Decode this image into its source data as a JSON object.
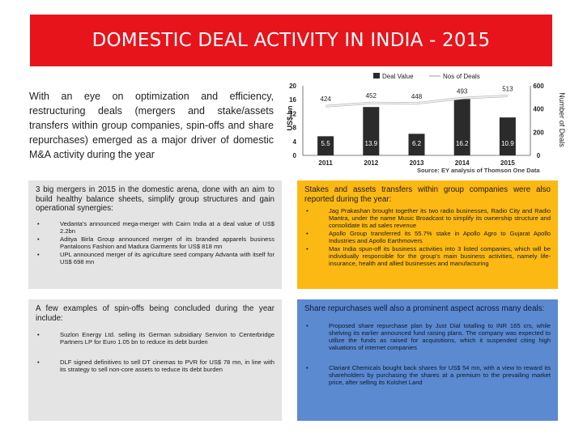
{
  "title": "DOMESTIC DEAL ACTIVITY IN INDIA - 2015",
  "intro": "With an eye on optimization and efficiency, restructuring deals (mergers and stake/assets transfers within group companies, spin-offs and share repurchases) emerged as a major driver of domestic M&A activity during the year",
  "chart_data": {
    "type": "bar",
    "categories": [
      "2011",
      "2012",
      "2013",
      "2014",
      "2015"
    ],
    "series": [
      {
        "name": "Deal Value",
        "kind": "bar",
        "axis": "left",
        "values": [
          5.5,
          13.9,
          6.2,
          16.2,
          10.9
        ],
        "labels": [
          "5.5",
          "13.9",
          "6.2",
          "16.2",
          "10.9"
        ]
      },
      {
        "name": "Nos of Deals",
        "kind": "line",
        "axis": "right",
        "values": [
          424,
          452,
          448,
          493,
          513
        ],
        "labels": [
          "424",
          "452",
          "448",
          "493",
          "513"
        ]
      }
    ],
    "ylabel": "US$ bn",
    "y2label": "Number of Deals",
    "ylim": [
      0,
      20
    ],
    "y2lim": [
      0,
      600
    ],
    "yticks": [
      "0",
      "4",
      "8",
      "12",
      "16",
      "20"
    ],
    "y2ticks": [
      "0",
      "200",
      "400",
      "600"
    ],
    "legend": "top",
    "bar_color": "#2b2b2b",
    "line_color": "#f2f2f2"
  },
  "source": "Source: EY analysis of Thomson One Data",
  "box1": {
    "lead": "3 big mergers in 2015 in the domestic arena, done with an aim to build healthy balance sheets, simplify group structures and gain operational synergies:",
    "bullet": "•",
    "items": [
      "Vedanta's announced mega-merger with Cairn India at a deal value of US$ 2.2bn",
      "Aditya Birla Group announced merger of its branded apparels business Pantaloons Fashion and Madura Garments for US$ 818 mn",
      "UPL announced merger of its agriculture seed company Advanta with itself for US$ 698 mn"
    ]
  },
  "box2": {
    "lead": "Stakes and assets transfers within group companies were also reported during the year:",
    "bullet": "•",
    "items": [
      "Jag Prakashan brought together its two radio businesses, Radio City and Radio Mantra, under the name Music Broadcast to simplify its ownership structure and consolidate its ad sales revenue",
      "Apollo Group transferred its 55.7% stake in Apollo Agro to Gujarat Apollo Industries and Apollo Earthmovers",
      "Max India spun-off its business activities into 3 listed companies, which will be individually responsible for the group's main business activities, namely life-insurance, health and allied businesses and manufacturing"
    ]
  },
  "box3": {
    "lead": "A few examples of spin-offs being concluded during the year include:",
    "bullet": "•",
    "items": [
      "Suzlon Energy Ltd. selling its German subsidiary Senvion to Centerbridge Partners LP for Euro 1.05 bn to reduce its debt burden",
      "DLF signed definitives to sell DT cinemas to PVR for US$ 78 mn, in line with its strategy to sell non-core assets to reduce its debt burden"
    ]
  },
  "box4": {
    "lead": "Share repurchases well also a prominent aspect across many deals:",
    "bullet": "•",
    "items": [
      "Proposed share repurchase plan by Just Dial totalling to INR 165 crs, while shelving its earlier announced fund raising plans. The company was expected to utilize the funds as raised for acquisitions, which it suspended citing high valuations of internet companies",
      "Clariant Chemicals bought back shares for US$ 54 mn, with a view to reward its shareholders by purchasing the shares at a premium to the prevailing market price, after selling its Kolshet Land"
    ]
  }
}
